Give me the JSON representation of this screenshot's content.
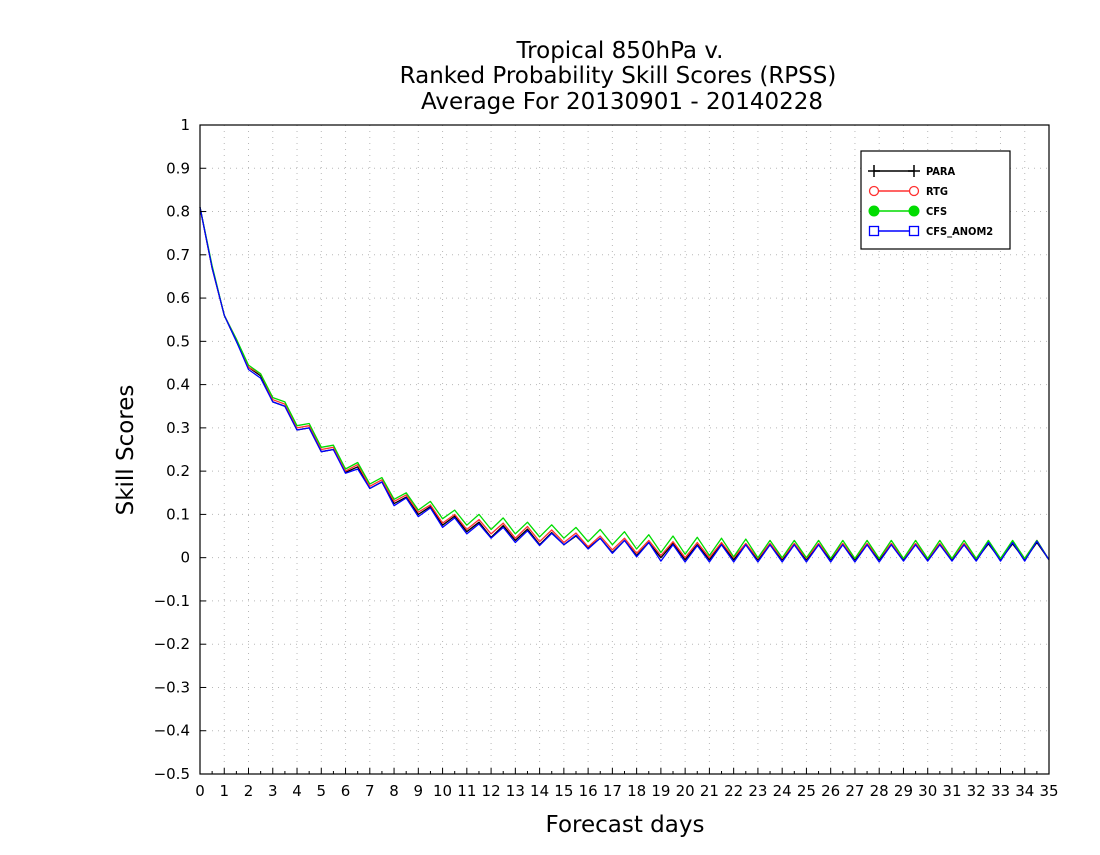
{
  "chart_data": {
    "type": "line",
    "title": [
      "Tropical 850hPa v.",
      "Ranked Probability Skill Scores (RPSS)",
      "Average For 20130901 - 20140228"
    ],
    "xlabel": "Forecast days",
    "ylabel": "Skill Scores",
    "xlim": [
      0,
      35
    ],
    "ylim": [
      -0.5,
      1
    ],
    "x_ticks": [
      0,
      1,
      2,
      3,
      4,
      5,
      6,
      7,
      8,
      9,
      10,
      11,
      12,
      13,
      14,
      15,
      16,
      17,
      18,
      19,
      20,
      21,
      22,
      23,
      24,
      25,
      26,
      27,
      28,
      29,
      30,
      31,
      32,
      33,
      34,
      35
    ],
    "y_ticks": [
      -0.5,
      -0.4,
      -0.3,
      -0.2,
      -0.1,
      0,
      0.1,
      0.2,
      0.3,
      0.4,
      0.5,
      0.6,
      0.7,
      0.8,
      0.9,
      1
    ],
    "y_tick_labels": [
      "−0.5",
      "−0.4",
      "−0.3",
      "−0.2",
      "−0.1",
      "0",
      "0.1",
      "0.2",
      "0.3",
      "0.4",
      "0.5",
      "0.6",
      "0.7",
      "0.8",
      "0.9",
      "1"
    ],
    "grid": true,
    "legend_position": "top-right",
    "x": [
      0,
      0.5,
      1,
      1.5,
      2,
      2.5,
      3,
      3.5,
      4,
      4.5,
      5,
      5.5,
      6,
      6.5,
      7,
      7.5,
      8,
      8.5,
      9,
      9.5,
      10,
      10.5,
      11,
      11.5,
      12,
      12.5,
      13,
      13.5,
      14,
      14.5,
      15,
      15.5,
      16,
      16.5,
      17,
      17.5,
      18,
      18.5,
      19,
      19.5,
      20,
      20.5,
      21,
      21.5,
      22,
      22.5,
      23,
      23.5,
      24,
      24.5,
      25,
      25.5,
      26,
      26.5,
      27,
      27.5,
      28,
      28.5,
      29,
      29.5,
      30,
      30.5,
      31,
      31.5,
      32,
      32.5,
      33,
      33.5,
      34,
      34.5,
      35
    ],
    "series": [
      {
        "name": "PARA",
        "color": "#000000",
        "marker": "plus",
        "values": [
          0.81,
          0.67,
          0.56,
          0.5,
          0.44,
          0.42,
          0.36,
          0.35,
          0.295,
          0.3,
          0.245,
          0.25,
          0.197,
          0.21,
          0.16,
          0.175,
          0.125,
          0.14,
          0.1,
          0.118,
          0.075,
          0.096,
          0.06,
          0.082,
          0.047,
          0.074,
          0.04,
          0.066,
          0.03,
          0.058,
          0.03,
          0.05,
          0.022,
          0.045,
          0.012,
          0.04,
          0.005,
          0.035,
          0.0,
          0.033,
          -0.005,
          0.03,
          -0.005,
          0.032,
          -0.005,
          0.03,
          -0.005,
          0.03,
          -0.005,
          0.03,
          -0.005,
          0.03,
          -0.005,
          0.03,
          -0.005,
          0.03,
          -0.005,
          0.03,
          -0.005,
          0.03,
          -0.005,
          0.03,
          -0.005,
          0.03,
          -0.005,
          0.032,
          -0.005,
          0.032,
          -0.005,
          0.035,
          -0.005
        ]
      },
      {
        "name": "RTG",
        "color": "#ff3030",
        "marker": "open-circle",
        "values": [
          0.81,
          0.67,
          0.56,
          0.505,
          0.44,
          0.425,
          0.365,
          0.355,
          0.3,
          0.305,
          0.25,
          0.255,
          0.2,
          0.215,
          0.165,
          0.18,
          0.13,
          0.145,
          0.105,
          0.122,
          0.08,
          0.1,
          0.065,
          0.088,
          0.055,
          0.08,
          0.045,
          0.072,
          0.037,
          0.064,
          0.035,
          0.057,
          0.025,
          0.05,
          0.018,
          0.045,
          0.01,
          0.04,
          0.005,
          0.037,
          0.0,
          0.035,
          0.0,
          0.035,
          0.0,
          0.033,
          -0.002,
          0.033,
          -0.002,
          0.033,
          -0.002,
          0.033,
          -0.002,
          0.033,
          -0.002,
          0.033,
          -0.002,
          0.033,
          -0.002,
          0.033,
          -0.002,
          0.033,
          -0.002,
          0.033,
          -0.002,
          0.035,
          -0.002,
          0.035,
          -0.002,
          0.04,
          -0.005
        ]
      },
      {
        "name": "CFS",
        "color": "#00dc00",
        "marker": "filled-circle",
        "values": [
          0.81,
          0.675,
          0.56,
          0.505,
          0.445,
          0.425,
          0.37,
          0.36,
          0.305,
          0.31,
          0.255,
          0.26,
          0.205,
          0.22,
          0.17,
          0.185,
          0.135,
          0.15,
          0.11,
          0.13,
          0.09,
          0.11,
          0.075,
          0.1,
          0.065,
          0.092,
          0.055,
          0.082,
          0.048,
          0.076,
          0.045,
          0.07,
          0.037,
          0.065,
          0.03,
          0.06,
          0.02,
          0.053,
          0.012,
          0.05,
          0.008,
          0.047,
          0.005,
          0.045,
          0.002,
          0.043,
          0.0,
          0.04,
          0.0,
          0.04,
          0.0,
          0.04,
          -0.002,
          0.04,
          -0.002,
          0.04,
          -0.002,
          0.04,
          -0.002,
          0.04,
          -0.002,
          0.04,
          -0.002,
          0.04,
          -0.002,
          0.04,
          -0.002,
          0.04,
          -0.002,
          0.04,
          -0.005
        ]
      },
      {
        "name": "CFS_ANOM2",
        "color": "#0000ff",
        "marker": "open-square",
        "values": [
          0.81,
          0.67,
          0.56,
          0.5,
          0.435,
          0.415,
          0.36,
          0.35,
          0.295,
          0.3,
          0.245,
          0.25,
          0.195,
          0.205,
          0.16,
          0.175,
          0.12,
          0.138,
          0.095,
          0.115,
          0.07,
          0.092,
          0.055,
          0.078,
          0.045,
          0.07,
          0.035,
          0.062,
          0.028,
          0.056,
          0.03,
          0.052,
          0.02,
          0.045,
          0.01,
          0.04,
          0.002,
          0.035,
          -0.008,
          0.03,
          -0.01,
          0.028,
          -0.01,
          0.03,
          -0.01,
          0.03,
          -0.01,
          0.03,
          -0.01,
          0.03,
          -0.01,
          0.03,
          -0.01,
          0.03,
          -0.01,
          0.03,
          -0.01,
          0.03,
          -0.008,
          0.03,
          -0.008,
          0.03,
          -0.008,
          0.03,
          -0.008,
          0.035,
          -0.008,
          0.035,
          -0.008,
          0.038,
          -0.005
        ]
      }
    ]
  }
}
